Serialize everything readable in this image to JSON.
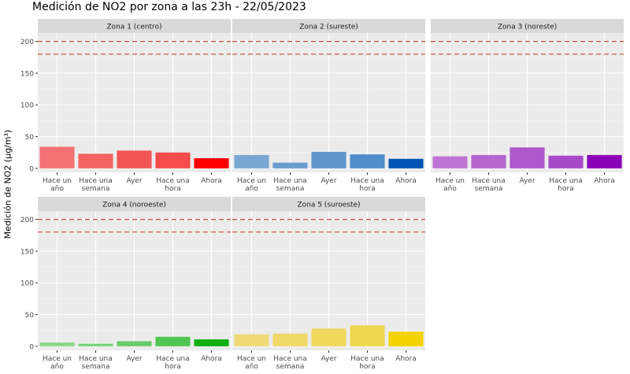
{
  "chart_data": {
    "type": "bar",
    "title": "Medición de NO2 por zona a las 23h - 22/05/2023",
    "xlabel": "",
    "ylabel": "Medición de NO2 (µg/m³)",
    "categories": [
      "Hace un año",
      "Hace una semana",
      "Ayer",
      "Hace una hora",
      "Ahora"
    ],
    "ylim": [
      0,
      200
    ],
    "yticks": [
      0,
      50,
      100,
      150,
      200
    ],
    "reference_lines": [
      200,
      180
    ],
    "reference_line_color": "#c0392b",
    "grid": true,
    "facets": [
      {
        "name": "Zona 1 (centro)",
        "colors": [
          "#f47272",
          "#f36363",
          "#f25656",
          "#f64b4b",
          "#ff0000"
        ],
        "values": [
          34,
          23,
          28,
          25,
          16
        ]
      },
      {
        "name": "Zona 2 (sureste)",
        "colors": [
          "#79a7d3",
          "#6a9dd0",
          "#5d95cd",
          "#4f8dcb",
          "#0055b4"
        ],
        "values": [
          21,
          9,
          26,
          22,
          15
        ]
      },
      {
        "name": "Zona 3 (noreste)",
        "colors": [
          "#bf74d3",
          "#b666cf",
          "#ad57cb",
          "#a64bc7",
          "#8a00b8"
        ],
        "values": [
          19,
          21,
          33,
          20,
          21
        ]
      },
      {
        "name": "Zona 4 (noroeste)",
        "colors": [
          "#87d887",
          "#78d278",
          "#68cc68",
          "#52c452",
          "#10b010"
        ],
        "values": [
          6,
          4,
          8,
          15,
          11
        ]
      },
      {
        "name": "Zona 5 (suroeste)",
        "colors": [
          "#f0da78",
          "#f0d968",
          "#efd85c",
          "#eed650",
          "#f5d300"
        ],
        "values": [
          19,
          20,
          28,
          33,
          23
        ]
      }
    ]
  }
}
